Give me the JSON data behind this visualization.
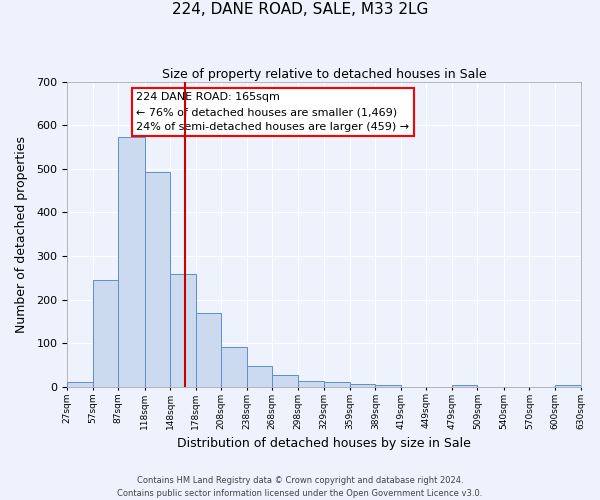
{
  "title": "224, DANE ROAD, SALE, M33 2LG",
  "subtitle": "Size of property relative to detached houses in Sale",
  "xlabel": "Distribution of detached houses by size in Sale",
  "ylabel": "Number of detached properties",
  "footer_lines": [
    "Contains HM Land Registry data © Crown copyright and database right 2024.",
    "Contains public sector information licensed under the Open Government Licence v3.0."
  ],
  "bar_left_edges": [
    27,
    57,
    87,
    118,
    148,
    178,
    208,
    238,
    268,
    298,
    329,
    359,
    389,
    419,
    449,
    479,
    509,
    540,
    570,
    600
  ],
  "bar_heights": [
    12,
    245,
    573,
    493,
    258,
    170,
    91,
    48,
    27,
    13,
    10,
    7,
    5,
    0,
    0,
    4,
    0,
    0,
    0,
    3
  ],
  "bar_color": "#ccdaf0",
  "bar_edge_color": "#5b8fc9",
  "tick_labels": [
    "27sqm",
    "57sqm",
    "87sqm",
    "118sqm",
    "148sqm",
    "178sqm",
    "208sqm",
    "238sqm",
    "268sqm",
    "298sqm",
    "329sqm",
    "359sqm",
    "389sqm",
    "419sqm",
    "449sqm",
    "479sqm",
    "509sqm",
    "540sqm",
    "570sqm",
    "600sqm",
    "630sqm"
  ],
  "ylim": [
    0,
    700
  ],
  "yticks": [
    0,
    100,
    200,
    300,
    400,
    500,
    600,
    700
  ],
  "property_line_x": 165,
  "property_line_color": "#cc0000",
  "annotation_text_line1": "224 DANE ROAD: 165sqm",
  "annotation_text_line2": "← 76% of detached houses are smaller (1,469)",
  "annotation_text_line3": "24% of semi-detached houses are larger (459) →",
  "bg_color": "#edf2fc",
  "plot_bg_color": "#edf2fc",
  "grid_color": "#ffffff"
}
